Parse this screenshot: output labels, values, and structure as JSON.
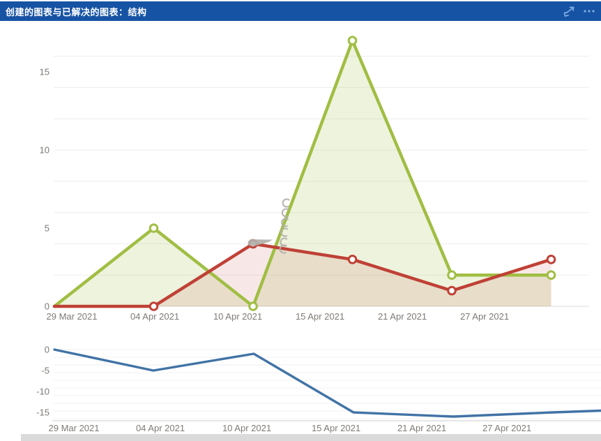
{
  "header": {
    "title": "创建的图表与已解决的图表：结构",
    "bg_color": "#1753A4",
    "icon_color": "#7FAFE3",
    "icons": [
      {
        "name": "expand-diagonal-arrows-icon"
      },
      {
        "name": "ellipsis-more-icon"
      }
    ]
  },
  "chart_data": [
    {
      "type": "area",
      "title": "",
      "x_tick_labels": [
        "29 Mar 2021",
        "04 Apr 2021",
        "10 Apr 2021",
        "15 Apr 2021",
        "21 Apr 2021",
        "27 Apr 2021"
      ],
      "y_ticks": [
        0,
        5,
        10,
        15
      ],
      "ylim": [
        0,
        17.5
      ],
      "grid": true,
      "legend": false,
      "series": [
        {
          "name": "green-series",
          "color": "#A0BE43",
          "fill_opacity": 0.18,
          "markers": true,
          "values": [
            0,
            5,
            0,
            17,
            2,
            2
          ]
        },
        {
          "name": "red-series",
          "color": "#BF4136",
          "fill_opacity": 0.12,
          "markers": true,
          "values": [
            0,
            0,
            4,
            3,
            1,
            3
          ]
        }
      ],
      "annotations": [
        "grey-cursor-arrow-icon",
        "grey-vertical-scribble-icon"
      ]
    },
    {
      "type": "line",
      "title": "",
      "x_tick_labels": [
        "29 Mar 2021",
        "04 Apr 2021",
        "10 Apr 2021",
        "15 Apr 2021",
        "21 Apr 2021",
        "27 Apr 2021"
      ],
      "y_ticks": [
        0,
        -5,
        -10,
        -15
      ],
      "ylim": [
        -17,
        0.5
      ],
      "grid": true,
      "legend": false,
      "series": [
        {
          "name": "blue-series",
          "color": "#4173A6",
          "markers": false,
          "extends_to_right_edge": true,
          "values": [
            0,
            -5,
            -1,
            -15,
            -16,
            -15
          ]
        }
      ]
    }
  ],
  "colors": {
    "gridline": "#ededed",
    "baseline": "#d8d8d8",
    "tick_label": "#7E7A74",
    "annotation_grey": "#b3afab"
  }
}
